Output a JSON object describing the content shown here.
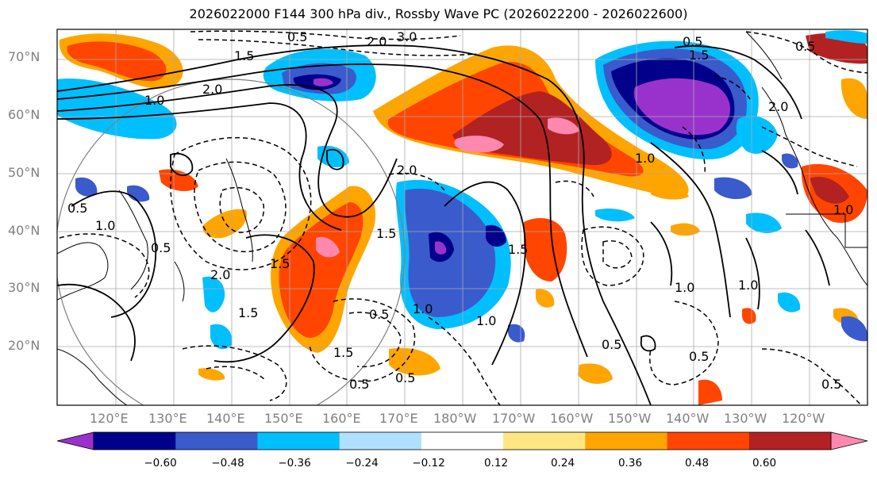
{
  "title": "2026022000 F144 300 hPa div., Rossby Wave PC (2026022200 - 2026022600)",
  "latitude_labels": [
    "70°N",
    "60°N",
    "50°N",
    "40°N",
    "30°N",
    "20°N"
  ],
  "longitude_labels": [
    "120°E",
    "130°E",
    "140°E",
    "150°E",
    "160°E",
    "170°E",
    "180°W",
    "170°W",
    "160°W",
    "150°W",
    "140°W",
    "130°W",
    "120°W"
  ],
  "colorbar": {
    "colors": [
      "#9932cc",
      "#00008b",
      "#3a5bcc",
      "#00bfff",
      "#b0e0ff",
      "#ffffff",
      "#ffe680",
      "#ffa500",
      "#ff4500",
      "#b22222",
      "#ff88b0"
    ],
    "ticks": [
      "−0.60",
      "−0.48",
      "−0.36",
      "−0.24",
      "−0.12",
      "0.12",
      "0.24",
      "0.36",
      "0.48",
      "0.60"
    ]
  },
  "contour_labels": [
    "0.5",
    "1.5",
    "2.0",
    "3.0",
    "1.0",
    "0.5",
    "2.0",
    "1.5",
    "1.0",
    "0.5",
    "1.5",
    "2.0",
    "1.0",
    "0.5",
    "1.5",
    "0.5",
    "1.0",
    "2.0",
    "1.5",
    "1.0",
    "0.5",
    "1.5",
    "0.5",
    "1.0",
    "0.5",
    "1.5",
    "0.5",
    "1.0",
    "1.0",
    "0.5",
    "2.0",
    "0.5"
  ]
}
